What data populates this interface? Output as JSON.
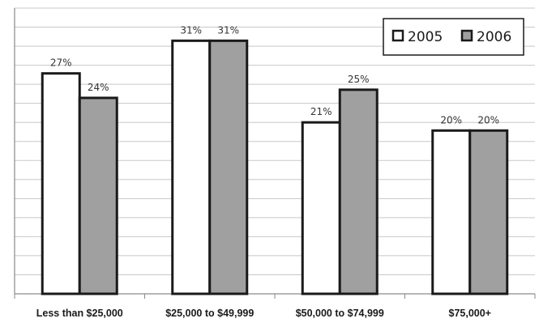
{
  "chart_data": {
    "type": "bar",
    "title": "",
    "xlabel": "",
    "ylabel": "",
    "categories": [
      "Less than $25,000",
      "$25,000 to $49,999",
      "$50,000 to $74,999",
      "$75,000+"
    ],
    "series": [
      {
        "name": "2005",
        "values": [
          27,
          31,
          21,
          20
        ],
        "labels": [
          "27%",
          "31%",
          "21%",
          "20%"
        ],
        "color": "#ffffff"
      },
      {
        "name": "2006",
        "values": [
          24,
          31,
          25,
          20
        ],
        "labels": [
          "24%",
          "31%",
          "25%",
          "20%"
        ],
        "color": "#a0a0a0"
      }
    ],
    "ylim": [
      0,
      35
    ],
    "gridlines": true,
    "legend_position": "top-right"
  }
}
